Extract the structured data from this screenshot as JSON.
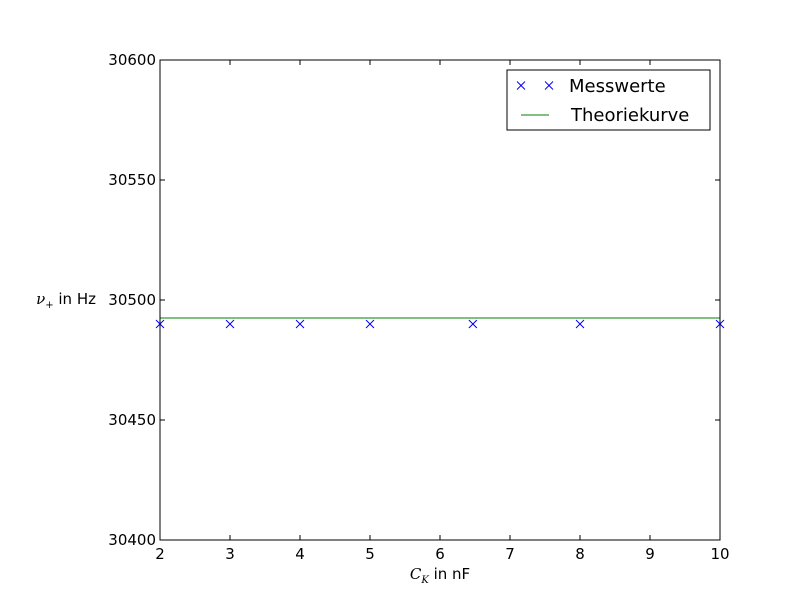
{
  "chart_data": {
    "type": "scatter",
    "title": "",
    "xlabel": {
      "symbol": "C",
      "subscript": "K",
      "unit": " in nF"
    },
    "ylabel": {
      "symbol": "ν",
      "subscript": "+",
      "unit": " in Hz"
    },
    "xlim": [
      2,
      10
    ],
    "ylim": [
      30400,
      30600
    ],
    "xticks": [
      2,
      3,
      4,
      5,
      6,
      7,
      8,
      9,
      10
    ],
    "yticks": [
      30400,
      30450,
      30500,
      30550,
      30600
    ],
    "grid": false,
    "legend_position": "top-right",
    "series": [
      {
        "name": "Messwerte",
        "kind": "markers",
        "marker": "x",
        "color": "#0000ff",
        "x": [
          2,
          3,
          4,
          5,
          6.47,
          8,
          10
        ],
        "y": [
          30490,
          30490,
          30490,
          30490,
          30490,
          30490,
          30490
        ]
      },
      {
        "name": "Theoriekurve",
        "kind": "line",
        "color": "#008000",
        "x": [
          2,
          10
        ],
        "y": [
          30492.5,
          30492.5
        ]
      }
    ]
  }
}
